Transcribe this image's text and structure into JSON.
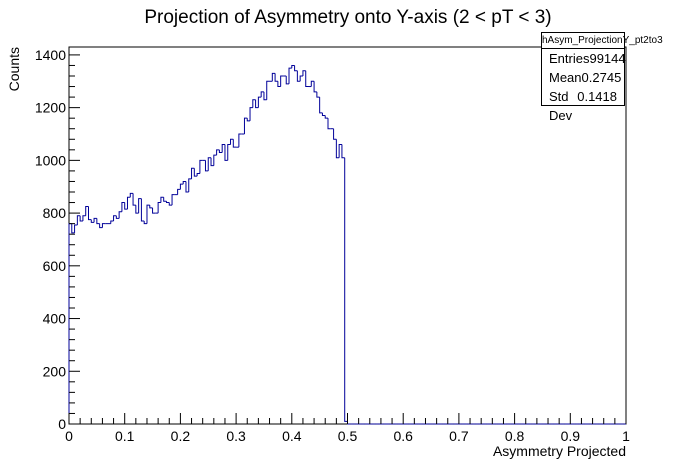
{
  "chart_data": {
    "type": "histogram",
    "title": "Projection of Asymmetry onto Y-axis (2 < pT < 3)",
    "xlabel": "Asymmetry Projected",
    "ylabel": "Counts",
    "xlim": [
      0,
      1
    ],
    "ylim": [
      0,
      1430
    ],
    "grid": false,
    "x_ticks": [
      "0",
      "0.1",
      "0.2",
      "0.3",
      "0.4",
      "0.5",
      "0.6",
      "0.7",
      "0.8",
      "0.9",
      "1"
    ],
    "y_ticks": [
      "0",
      "200",
      "400",
      "600",
      "800",
      "1000",
      "1200",
      "1400"
    ],
    "bins": 200,
    "bin_width": 0.005,
    "values": [
      760,
      725,
      755,
      790,
      770,
      790,
      825,
      775,
      765,
      780,
      760,
      745,
      760,
      760,
      760,
      770,
      790,
      780,
      805,
      840,
      815,
      860,
      875,
      830,
      800,
      855,
      770,
      760,
      830,
      820,
      800,
      800,
      840,
      860,
      845,
      840,
      830,
      870,
      870,
      890,
      910,
      920,
      880,
      930,
      970,
      940,
      950,
      1000,
      1000,
      960,
      1010,
      980,
      1020,
      1040,
      1030,
      1060,
      1000,
      1060,
      1080,
      1050,
      1050,
      1100,
      1100,
      1160,
      1150,
      1200,
      1230,
      1200,
      1240,
      1260,
      1230,
      1300,
      1300,
      1330,
      1300,
      1280,
      1320,
      1320,
      1290,
      1350,
      1360,
      1340,
      1300,
      1320,
      1340,
      1280,
      1280,
      1300,
      1260,
      1240,
      1180,
      1170,
      1160,
      1120,
      1120,
      1080,
      1010,
      1060,
      1010,
      10,
      0,
      0,
      0,
      0,
      0,
      0,
      0,
      0,
      0,
      0,
      0,
      0,
      0,
      0,
      0,
      0,
      0,
      0,
      0,
      0,
      0,
      0,
      0,
      0,
      0,
      0,
      0,
      0,
      0,
      0,
      0,
      0,
      0,
      0,
      0,
      0,
      0,
      0,
      0,
      0,
      0,
      0,
      0,
      0,
      0,
      0,
      0,
      0,
      0,
      0,
      0,
      0,
      0,
      0,
      0,
      0,
      0,
      0,
      0,
      0,
      0,
      0,
      0,
      0,
      0,
      0,
      0,
      0,
      0,
      0,
      0,
      0,
      0,
      0,
      0,
      0,
      0,
      0,
      0,
      0,
      0,
      0,
      0,
      0,
      0,
      0,
      0,
      0,
      0,
      0,
      0,
      0,
      0,
      0,
      0,
      0,
      0,
      0,
      0,
      0
    ],
    "line_color": "#000099"
  },
  "stats": {
    "name": "hAsym_ProjectionY_pt2to3",
    "rows": [
      {
        "label": "Entries",
        "value": "99144"
      },
      {
        "label": "Mean",
        "value": "0.2745"
      },
      {
        "label": "Std Dev",
        "value": "0.1418"
      }
    ]
  }
}
